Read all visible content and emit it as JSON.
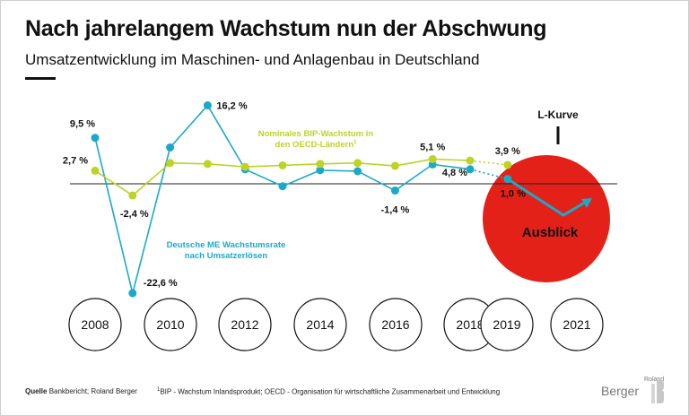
{
  "header": {
    "title": "Nach jahrelangem Wachstum nun der Abschwung",
    "subtitle": "Umsatzentwicklung im Maschinen- und Anlagenbau in Deutschland"
  },
  "chart_data": {
    "type": "line",
    "title": "Nach jahrelangem Wachstum nun der Abschwung",
    "subtitle": "Umsatzentwicklung im Maschinen- und Anlagenbau in Deutschland",
    "x": [
      2008,
      2009,
      2010,
      2011,
      2012,
      2013,
      2014,
      2015,
      2016,
      2017,
      2018,
      2019
    ],
    "year_ticks": [
      "2008",
      "2010",
      "2012",
      "2014",
      "2016",
      "2018",
      "2019",
      "2021"
    ],
    "ylim": [
      -25,
      18
    ],
    "series": [
      {
        "name": "Deutsche ME Wachstumsrate nach Umsatzerlösen",
        "color": "#1aaac8",
        "values": [
          9.5,
          -22.6,
          7.5,
          16.2,
          3.0,
          -0.5,
          2.8,
          2.6,
          -1.4,
          4.0,
          3.0,
          1.0
        ]
      },
      {
        "name": "Nominales BIP-Wachstum in den OECD-Ländern",
        "name_line1": "Nominales BIP-Wachstum in",
        "name_line2": "den OECD-Ländern",
        "footnote_mark": "1",
        "color": "#bdd325",
        "values": [
          2.7,
          -2.4,
          4.3,
          4.1,
          3.5,
          3.8,
          4.1,
          4.3,
          3.7,
          5.1,
          4.8,
          3.9
        ]
      }
    ],
    "data_labels": [
      {
        "text": "9,5 %",
        "year": 2008,
        "value": 9.5
      },
      {
        "text": "-22,6 %",
        "year": 2009,
        "value": -22.6
      },
      {
        "text": "16,2 %",
        "year": 2011,
        "value": 16.2
      },
      {
        "text": "-1,4 %",
        "year": 2016,
        "value": -1.4
      },
      {
        "text": "4,8 %",
        "year": 2018,
        "value": 4.8
      },
      {
        "text": "1,0 %",
        "year": 2019,
        "value": 1.0
      },
      {
        "text": "2,7 %",
        "year": 2008,
        "value": 2.7
      },
      {
        "text": "-2,4 %",
        "year": 2009,
        "value": -2.4
      },
      {
        "text": "5,1 %",
        "year": 2017,
        "value": 5.1
      },
      {
        "text": "3,9 %",
        "year": 2019,
        "value": 3.9
      }
    ],
    "blue_series_label_line1": "Deutsche ME Wachstumsrate",
    "blue_series_label_line2": "nach Umsatzerlösen",
    "forecast": {
      "title": "L-Kurve",
      "label": "Ausblick",
      "circle_color": "#e32119",
      "arrow_color": "#1aaac8"
    }
  },
  "footer": {
    "source_label": "Quelle",
    "source_text": "Bankbericht; Roland Berger",
    "note": "BIP - Wachstum Inlandsprodukt; OECD - Organisation für wirtschaftliche Zusammenarbeit und Entwicklung",
    "note_mark": "1"
  },
  "logo": {
    "roland": "Roland",
    "berger": "Berger"
  }
}
